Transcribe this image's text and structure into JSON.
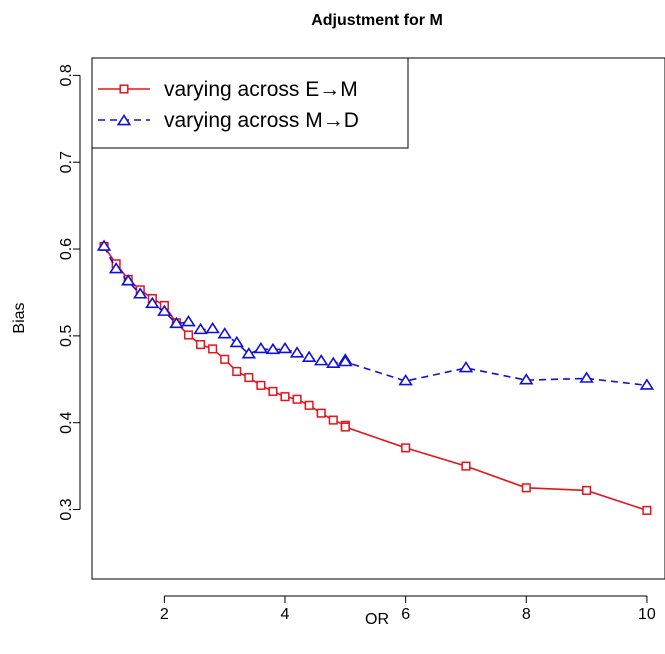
{
  "chart_data": {
    "type": "line",
    "title": "Adjustment for M",
    "xlabel": "OR",
    "ylabel": "Bias",
    "xlim": [
      0.8,
      10.3
    ],
    "ylim": [
      0.22,
      0.82
    ],
    "xticks": [
      2,
      4,
      6,
      8,
      10
    ],
    "xtick_labels": [
      "2",
      "4",
      "6",
      "8",
      "10"
    ],
    "yticks": [
      0.3,
      0.4,
      0.5,
      0.6,
      0.7,
      0.8
    ],
    "ytick_labels": [
      "0.3",
      "0.4",
      "0.5",
      "0.6",
      "0.7",
      "0.8"
    ],
    "grid": false,
    "legend_position": "top-left",
    "series": [
      {
        "name": "varying across E→M",
        "color": "#e8121a",
        "marker": "square",
        "line": "solid",
        "x": [
          1.0,
          1.2,
          1.4,
          1.6,
          1.8,
          2.0,
          2.2,
          2.4,
          2.6,
          2.8,
          3.0,
          3.2,
          3.4,
          3.6,
          3.8,
          4.0,
          4.2,
          4.4,
          4.6,
          4.8,
          5.0,
          5.0,
          6,
          7,
          8,
          9,
          10
        ],
        "y": [
          0.603,
          0.583,
          0.565,
          0.553,
          0.543,
          0.535,
          0.515,
          0.501,
          0.49,
          0.485,
          0.473,
          0.459,
          0.452,
          0.443,
          0.436,
          0.43,
          0.427,
          0.42,
          0.411,
          0.403,
          0.397,
          0.395,
          0.371,
          0.35,
          0.325,
          0.322,
          0.299
        ]
      },
      {
        "name": "varying across M→D",
        "color": "#1010d8",
        "marker": "triangle",
        "line": "dashed",
        "x": [
          1.0,
          1.2,
          1.4,
          1.6,
          1.8,
          2.0,
          2.2,
          2.4,
          2.6,
          2.8,
          3.0,
          3.2,
          3.4,
          3.6,
          3.8,
          4.0,
          4.2,
          4.4,
          4.6,
          4.8,
          5.0,
          5.0,
          6,
          7,
          8,
          9,
          10
        ],
        "y": [
          0.603,
          0.577,
          0.563,
          0.548,
          0.537,
          0.528,
          0.514,
          0.516,
          0.507,
          0.508,
          0.502,
          0.492,
          0.479,
          0.485,
          0.484,
          0.485,
          0.48,
          0.475,
          0.471,
          0.468,
          0.472,
          0.47,
          0.448,
          0.463,
          0.449,
          0.451,
          0.443
        ]
      }
    ]
  }
}
